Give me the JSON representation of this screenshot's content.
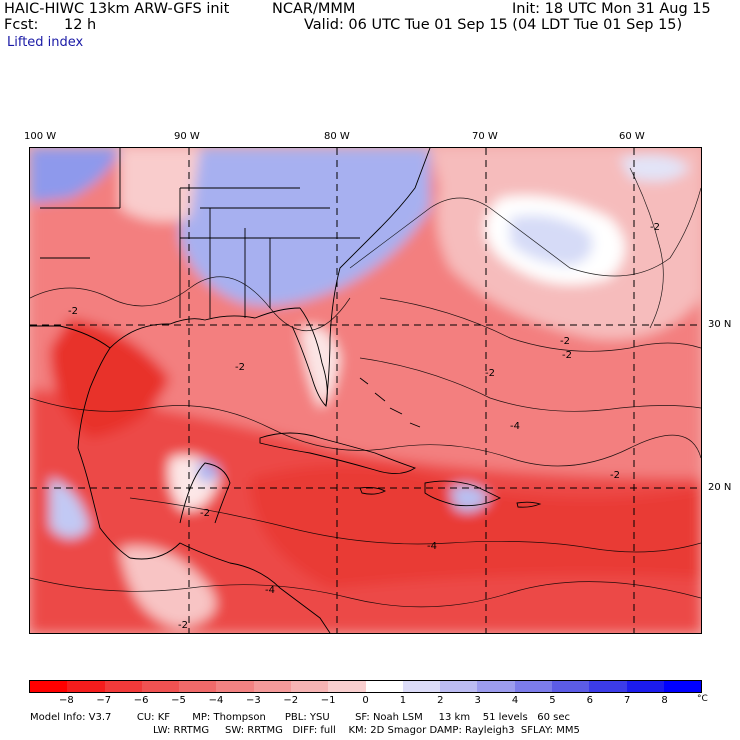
{
  "header": {
    "model_title": "HAIC-HIWC 13km ARW-GFS init",
    "org": "NCAR/MMM",
    "init": "Init: 18 UTC Mon 31 Aug 15",
    "forecast_label": "Fcst:",
    "forecast_hours": "12 h",
    "valid": "Valid: 06 UTC Tue 01 Sep 15 (04 LDT Tue 01 Sep 15)",
    "field_name": "Lifted index"
  },
  "map": {
    "longitude_labels": [
      "100 W",
      "90 W",
      "80 W",
      "70 W",
      "60 W"
    ],
    "latitude_labels": [
      "30 N",
      "20 N"
    ],
    "contour_labels": [
      "-2",
      "-2",
      "-2",
      "-2",
      "-2",
      "-2",
      "-4",
      "-4",
      "-4",
      "-2",
      "-2",
      "-2"
    ],
    "colors": {
      "strong_unstable": "#e8281e",
      "unstable": "#f46464",
      "weak_unstable": "#f8b4b4",
      "neutral": "#fbe2e2",
      "weak_stable": "#cdd4f6",
      "stable": "#a3aef0",
      "strong_stable": "#7f8cec"
    }
  },
  "colorbar": {
    "ticks": [
      "−8",
      "−7",
      "−6",
      "−5",
      "−4",
      "−3",
      "−2",
      "−1",
      "0",
      "1",
      "2",
      "3",
      "4",
      "5",
      "6",
      "7",
      "8"
    ],
    "unit": "°C",
    "colors": [
      "#ff0000",
      "#f61d1d",
      "#f23a3a",
      "#f05252",
      "#f06a6a",
      "#f28282",
      "#f49a9a",
      "#f6b4b4",
      "#f9cfcf",
      "#ffffff",
      "#dcdcf8",
      "#bcbcf2",
      "#9c9cee",
      "#7c7cea",
      "#5c5ce6",
      "#3c3ce8",
      "#1c1cee",
      "#0000ff"
    ]
  },
  "footer": {
    "line1": "Model Info: V3.7        CU: KF       MP: Thompson      PBL: YSU        SF: Noah LSM     13 km    51 levels   60 sec",
    "line2": "LW: RRTMG     SW: RRTMG   DIFF: full    KM: 2D Smagor DAMP: Rayleigh3  SFLAY: MM5"
  }
}
